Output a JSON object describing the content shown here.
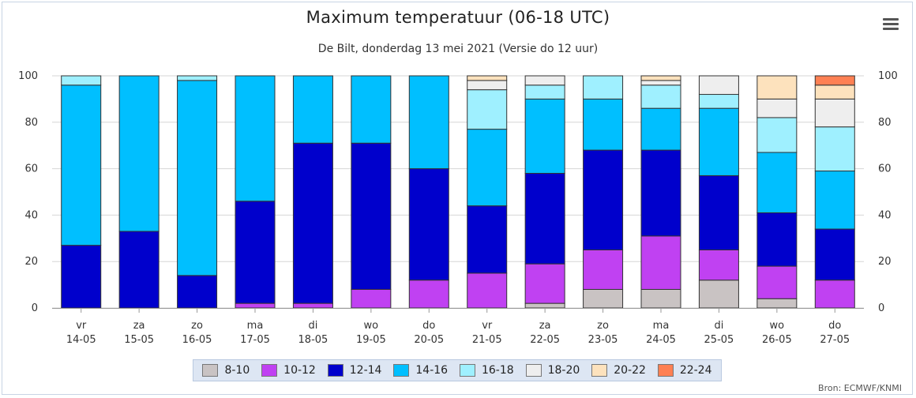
{
  "chart_data": {
    "type": "bar",
    "stacked": true,
    "title": "Maximum temperatuur (06-18 UTC)",
    "subtitle": "De Bilt, donderdag 13 mei 2021 (Versie do 12 uur)",
    "ylim": [
      0,
      100
    ],
    "yticks": [
      0,
      20,
      40,
      60,
      80,
      100
    ],
    "grid": true,
    "legend_position": "bottom",
    "categories": [
      {
        "day": "vr",
        "date": "14-05"
      },
      {
        "day": "za",
        "date": "15-05"
      },
      {
        "day": "zo",
        "date": "16-05"
      },
      {
        "day": "ma",
        "date": "17-05"
      },
      {
        "day": "di",
        "date": "18-05"
      },
      {
        "day": "wo",
        "date": "19-05"
      },
      {
        "day": "do",
        "date": "20-05"
      },
      {
        "day": "vr",
        "date": "21-05"
      },
      {
        "day": "za",
        "date": "22-05"
      },
      {
        "day": "zo",
        "date": "23-05"
      },
      {
        "day": "ma",
        "date": "24-05"
      },
      {
        "day": "di",
        "date": "25-05"
      },
      {
        "day": "wo",
        "date": "26-05"
      },
      {
        "day": "do",
        "date": "27-05"
      }
    ],
    "series": [
      {
        "name": "8-10",
        "color": "#c9c3c3",
        "values": [
          0,
          0,
          0,
          0,
          0,
          0,
          0,
          0,
          2,
          8,
          8,
          12,
          4,
          0
        ]
      },
      {
        "name": "10-12",
        "color": "#c041f2",
        "values": [
          0,
          0,
          0,
          2,
          2,
          8,
          12,
          15,
          17,
          17,
          23,
          13,
          14,
          12
        ]
      },
      {
        "name": "12-14",
        "color": "#0000cc",
        "values": [
          27,
          33,
          14,
          44,
          69,
          63,
          48,
          29,
          39,
          43,
          37,
          32,
          23,
          22
        ]
      },
      {
        "name": "14-16",
        "color": "#00bfff",
        "values": [
          69,
          67,
          84,
          54,
          29,
          29,
          40,
          33,
          32,
          22,
          18,
          29,
          26,
          25
        ]
      },
      {
        "name": "16-18",
        "color": "#9ff0ff",
        "values": [
          4,
          0,
          2,
          0,
          0,
          0,
          0,
          17,
          6,
          10,
          10,
          6,
          15,
          19
        ]
      },
      {
        "name": "18-20",
        "color": "#eeeeee",
        "values": [
          0,
          0,
          0,
          0,
          0,
          0,
          0,
          4,
          4,
          0,
          2,
          8,
          8,
          12
        ]
      },
      {
        "name": "20-22",
        "color": "#fde2bd",
        "values": [
          0,
          0,
          0,
          0,
          0,
          0,
          0,
          2,
          0,
          0,
          2,
          0,
          10,
          6
        ]
      },
      {
        "name": "22-24",
        "color": "#fe8053",
        "values": [
          0,
          0,
          0,
          0,
          0,
          0,
          0,
          0,
          0,
          0,
          0,
          0,
          0,
          4
        ]
      }
    ]
  },
  "menu_icon": "hamburger-menu-icon",
  "credit": "Bron: ECMWF/KNMI"
}
